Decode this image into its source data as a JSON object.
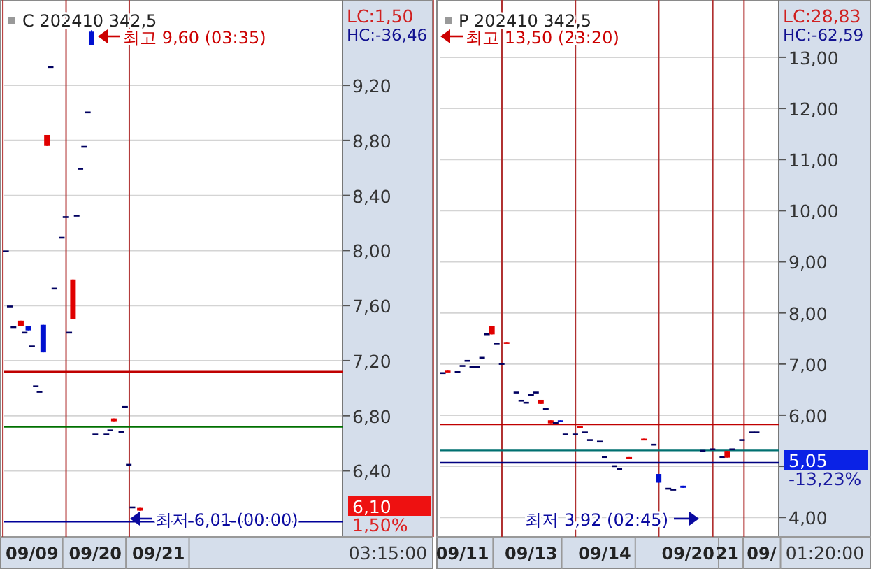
{
  "chart_data": [
    {
      "type": "candlestick",
      "title": "C 202410 342,5",
      "grid": "y",
      "categories": [
        null,
        null,
        null,
        null,
        null,
        null,
        null,
        "09/09",
        null,
        null,
        null,
        null,
        null,
        null,
        null,
        null,
        null,
        null,
        null,
        null,
        null,
        null,
        null,
        null,
        "09/20",
        null,
        null,
        null,
        null,
        null,
        null,
        null,
        null,
        null,
        null,
        null,
        null,
        null,
        null,
        null,
        null,
        "09/21",
        null,
        null,
        null,
        null,
        null,
        null,
        null,
        null,
        null,
        null,
        null,
        null,
        null,
        null,
        null,
        null,
        null,
        null,
        null,
        null,
        null,
        null,
        null,
        null,
        null,
        null,
        null,
        null,
        null,
        null,
        null,
        null,
        null,
        null,
        null,
        null,
        null,
        null,
        null,
        null,
        null,
        null,
        null,
        null,
        null,
        null,
        null,
        null,
        null
      ],
      "ohlc": [
        [
          8.0,
          8.0,
          8.0,
          8.0
        ],
        [
          7.6,
          7.6,
          7.6,
          7.6
        ],
        [
          7.45,
          7.45,
          7.45,
          7.45
        ],
        null,
        [
          7.45,
          7.49,
          7.45,
          7.49
        ],
        [
          7.41,
          7.41,
          7.41,
          7.41
        ],
        [
          7.45,
          7.45,
          7.42,
          7.42
        ],
        [
          7.31,
          7.31,
          7.31,
          7.31
        ],
        [
          7.02,
          7.02,
          7.02,
          7.02
        ],
        [
          6.98,
          6.98,
          6.98,
          6.98
        ],
        [
          7.46,
          7.46,
          7.26,
          7.26
        ],
        [
          8.76,
          8.84,
          8.76,
          8.84
        ],
        [
          9.34,
          9.34,
          9.34,
          9.34
        ],
        [
          7.73,
          7.73,
          7.73,
          7.73
        ],
        null,
        [
          8.1,
          8.1,
          8.1,
          8.1
        ],
        [
          8.25,
          8.25,
          8.25,
          8.25
        ],
        [
          7.41,
          7.41,
          7.41,
          7.41
        ],
        [
          7.5,
          7.79,
          7.5,
          7.79
        ],
        [
          8.26,
          8.26,
          8.26,
          8.26
        ],
        [
          8.6,
          8.6,
          8.6,
          8.6
        ],
        [
          8.76,
          8.76,
          8.76,
          8.76
        ],
        [
          9.01,
          9.01,
          9.01,
          9.01
        ],
        [
          9.59,
          9.6,
          9.49,
          9.49
        ],
        [
          6.67,
          6.67,
          6.67,
          6.67
        ],
        null,
        null,
        [
          6.67,
          6.67,
          6.67,
          6.67
        ],
        [
          6.7,
          6.7,
          6.7,
          6.7
        ],
        [
          6.76,
          6.78,
          6.76,
          6.78
        ],
        null,
        [
          6.69,
          6.69,
          6.69,
          6.69
        ],
        [
          6.87,
          6.87,
          6.87,
          6.87
        ],
        [
          6.45,
          6.45,
          6.45,
          6.45
        ],
        [
          6.14,
          6.14,
          6.14,
          6.14
        ],
        null,
        [
          6.11,
          6.13,
          6.11,
          6.13
        ],
        null,
        null,
        null,
        null,
        null,
        null,
        null,
        null,
        null,
        null,
        null,
        null,
        null,
        null,
        null,
        null,
        null,
        null,
        null,
        null,
        null,
        null,
        null,
        null,
        null,
        null,
        null,
        null,
        null,
        null,
        null,
        null,
        null,
        null,
        null,
        null,
        null,
        null,
        null,
        null,
        null,
        null,
        null,
        null,
        null,
        null,
        null,
        null,
        null,
        null,
        null,
        null,
        null,
        null
      ],
      "ylim": [
        5.92,
        9.82
      ],
      "yticks": [
        {
          "value": 6.4,
          "label": "6,40"
        },
        {
          "value": 6.8,
          "label": "6,80"
        },
        {
          "value": 7.2,
          "label": "7,20"
        },
        {
          "value": 7.6,
          "label": "7,60"
        },
        {
          "value": 8.0,
          "label": "8,00"
        },
        {
          "value": 8.4,
          "label": "8,40"
        },
        {
          "value": 8.8,
          "label": "8,80"
        },
        {
          "value": 9.2,
          "label": "9,20"
        }
      ],
      "ref_lines": [
        {
          "axis": "y",
          "value": 7.12,
          "color": "#c00000"
        },
        {
          "axis": "y",
          "value": 6.72,
          "color": "#007000"
        },
        {
          "axis": "y",
          "value": 6.03,
          "color": "#000099"
        }
      ],
      "annotations": [
        "최고 9,60 (03:35)",
        "최저 6,01 (00:00)",
        "LC:1,50",
        "HC:-36,46",
        "6,10",
        "1,50%",
        "03:15:00"
      ]
    },
    {
      "type": "candlestick",
      "title": "P 202410 342,5",
      "grid": "y",
      "categories": [
        null,
        null,
        null,
        null,
        "09/11",
        null,
        null,
        null,
        null,
        null,
        null,
        null,
        null,
        null,
        null,
        null,
        null,
        null,
        "09/13",
        null,
        null,
        null,
        null,
        null,
        null,
        null,
        null,
        null,
        null,
        null,
        null,
        null,
        null,
        "09/14",
        null,
        null,
        null,
        null,
        null,
        null,
        null,
        null,
        null,
        null,
        null,
        null,
        null,
        null,
        null,
        null,
        "09/20",
        null,
        null,
        null,
        null,
        null,
        null,
        null,
        "21",
        null,
        null,
        null,
        null,
        null,
        null,
        "09/",
        null,
        null,
        null
      ],
      "ohlc": [
        [
          6.84,
          6.84,
          6.84,
          6.84
        ],
        [
          6.85,
          6.87,
          6.85,
          6.87
        ],
        null,
        [
          6.86,
          6.86,
          6.86,
          6.86
        ],
        [
          6.98,
          6.98,
          6.98,
          6.98
        ],
        [
          7.08,
          7.08,
          7.08,
          7.08
        ],
        [
          6.96,
          6.96,
          6.96,
          6.96
        ],
        [
          6.96,
          6.96,
          6.96,
          6.96
        ],
        [
          7.14,
          7.14,
          7.14,
          7.14
        ],
        [
          7.6,
          7.6,
          7.6,
          7.6
        ],
        [
          7.58,
          7.74,
          7.58,
          7.74
        ],
        [
          7.42,
          7.42,
          7.42,
          7.42
        ],
        [
          7.02,
          7.02,
          7.02,
          7.02
        ],
        [
          7.41,
          7.43,
          7.41,
          7.43
        ],
        null,
        [
          6.46,
          6.46,
          6.46,
          6.46
        ],
        [
          6.3,
          6.3,
          6.3,
          6.3
        ],
        [
          6.26,
          6.26,
          6.26,
          6.26
        ],
        [
          6.41,
          6.41,
          6.41,
          6.41
        ],
        [
          6.46,
          6.46,
          6.46,
          6.46
        ],
        [
          6.22,
          6.3,
          6.22,
          6.3
        ],
        [
          6.14,
          6.14,
          6.14,
          6.14
        ],
        [
          5.84,
          5.9,
          5.84,
          5.9
        ],
        [
          5.87,
          5.87,
          5.87,
          5.87
        ],
        [
          5.9,
          5.9,
          5.88,
          5.88
        ],
        [
          5.64,
          5.64,
          5.64,
          5.64
        ],
        null,
        [
          5.64,
          5.64,
          5.64,
          5.64
        ],
        [
          5.76,
          5.78,
          5.76,
          5.78
        ],
        [
          5.68,
          5.68,
          5.68,
          5.68
        ],
        [
          5.53,
          5.53,
          5.53,
          5.53
        ],
        null,
        [
          5.5,
          5.5,
          5.5,
          5.5
        ],
        [
          5.2,
          5.2,
          5.2,
          5.2
        ],
        null,
        [
          5.02,
          5.02,
          5.02,
          5.02
        ],
        [
          4.96,
          4.96,
          4.96,
          4.96
        ],
        null,
        [
          5.16,
          5.18,
          5.16,
          5.18
        ],
        null,
        null,
        [
          5.52,
          5.54,
          5.52,
          5.54
        ],
        null,
        [
          5.44,
          5.44,
          5.44,
          5.44
        ],
        [
          4.85,
          4.85,
          4.68,
          4.68
        ],
        null,
        [
          4.58,
          4.58,
          4.58,
          4.58
        ],
        [
          4.56,
          4.56,
          4.56,
          4.56
        ],
        null,
        [
          4.62,
          4.62,
          4.58,
          4.58
        ],
        null,
        null,
        null,
        [
          5.32,
          5.32,
          5.32,
          5.32
        ],
        null,
        [
          5.35,
          5.35,
          5.35,
          5.35
        ],
        null,
        [
          5.2,
          5.2,
          5.2,
          5.2
        ],
        [
          5.17,
          5.3,
          5.17,
          5.3
        ],
        [
          5.35,
          5.35,
          5.35,
          5.35
        ],
        null,
        [
          5.53,
          5.53,
          5.53,
          5.53
        ],
        null,
        [
          5.68,
          5.68,
          5.68,
          5.68
        ],
        [
          5.68,
          5.68,
          5.68,
          5.68
        ],
        null,
        null,
        null,
        null
      ],
      "ylim": [
        3.62,
        14.12
      ],
      "yticks": [
        {
          "value": 4,
          "label": "4,00"
        },
        {
          "value": 5,
          "label": null
        },
        {
          "value": 6,
          "label": "6,00"
        },
        {
          "value": 7,
          "label": "7,00"
        },
        {
          "value": 8,
          "label": "8,00"
        },
        {
          "value": 9,
          "label": "9,00"
        },
        {
          "value": 10,
          "label": "10,00"
        },
        {
          "value": 11,
          "label": "11,00"
        },
        {
          "value": 12,
          "label": "12,00"
        },
        {
          "value": 13,
          "label": "13,00"
        }
      ],
      "ref_lines": [
        {
          "axis": "y",
          "value": 5.82,
          "color": "#c00000"
        },
        {
          "axis": "y",
          "value": 5.31,
          "color": "#007070"
        },
        {
          "axis": "y",
          "value": 5.07,
          "color": "#000080"
        }
      ],
      "annotations": [
        "최고 13,50 (23:20)",
        "최저 3,92 (02:45)",
        "LC:28,83",
        "HC:-62,59",
        "5,05",
        "-13,23%",
        "01:20:00"
      ]
    }
  ]
}
